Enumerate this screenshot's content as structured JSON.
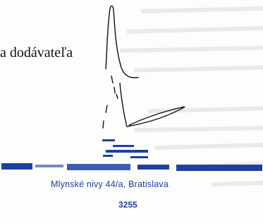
{
  "text": "a dodávateľa",
  "stamp": {
    "address": "Mlynské nivy 44/a, Bratislava",
    "number": "3255"
  }
}
